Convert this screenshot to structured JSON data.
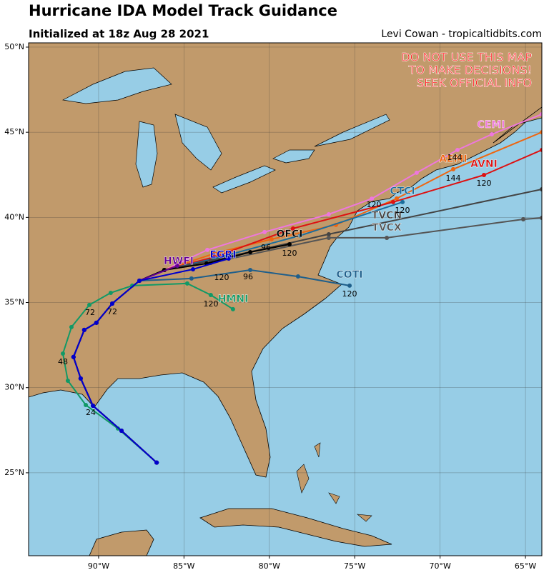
{
  "title": "Hurricane IDA Model Track Guidance",
  "subtitle": "Initialized at 18z Aug 28 2021",
  "credit": "Levi Cowan - tropicaltidbits.com",
  "warning": [
    "DO NOT USE THIS MAP",
    "TO MAKE DECISIONS!",
    "SEEK OFFICIAL INFO"
  ],
  "map": {
    "xlim": [
      -94.1,
      -64.04
    ],
    "ylim": [
      20.13,
      50.25
    ],
    "xticks": [
      {
        "value": -90,
        "label": "90°W"
      },
      {
        "value": -85,
        "label": "85°W"
      },
      {
        "value": -80,
        "label": "80°W"
      },
      {
        "value": -75,
        "label": "75°W"
      },
      {
        "value": -70,
        "label": "70°W"
      },
      {
        "value": -65,
        "label": "65°W"
      }
    ],
    "yticks": [
      {
        "value": 25,
        "label": "25°N"
      },
      {
        "value": 30,
        "label": "30°N"
      },
      {
        "value": 35,
        "label": "35°N"
      },
      {
        "value": 40,
        "label": "40°N"
      },
      {
        "value": 45,
        "label": "45°N"
      },
      {
        "value": 50,
        "label": "50°N"
      }
    ],
    "grid": true
  },
  "tracks": [
    {
      "name": "CEMI",
      "color": "#ee77dd",
      "lon": [
        -86.6,
        -88.66,
        -90.33,
        -91.05,
        -91.47,
        -90.84,
        -90.13,
        -89.2,
        -87.61,
        -86.15,
        -83.63,
        -80.28,
        -76.52,
        -74.0,
        -71.37,
        -68.98,
        -66.97,
        -64.04
      ],
      "lat": [
        25.6,
        27.47,
        28.94,
        30.54,
        31.8,
        33.39,
        33.81,
        34.94,
        36.28,
        36.91,
        38.09,
        39.14,
        40.18,
        41.1,
        42.62,
        43.96,
        44.88,
        46.06
      ]
    },
    {
      "name": "AEMI",
      "color": "#ee6611",
      "lon": [
        -86.6,
        -88.66,
        -90.33,
        -91.05,
        -91.47,
        -90.84,
        -90.13,
        -89.2,
        -87.61,
        -86.15,
        -83.22,
        -79.87,
        -76.1,
        -72.54,
        -69.23,
        -64.04
      ],
      "lat": [
        25.6,
        27.47,
        28.94,
        30.54,
        31.8,
        33.39,
        33.81,
        34.94,
        36.28,
        36.91,
        37.88,
        38.72,
        39.56,
        41.11,
        42.83,
        45.0
      ]
    },
    {
      "name": "AVNI",
      "color": "#dd1111",
      "lon": [
        -86.6,
        -88.66,
        -90.33,
        -91.05,
        -91.47,
        -90.84,
        -90.13,
        -89.2,
        -87.61,
        -86.15,
        -83.22,
        -78.61,
        -72.75,
        -67.43,
        -64.04
      ],
      "lat": [
        25.6,
        27.47,
        28.94,
        30.54,
        31.8,
        33.39,
        33.81,
        34.94,
        36.28,
        36.91,
        37.67,
        39.35,
        40.9,
        42.49,
        43.96
      ]
    },
    {
      "name": "CTCI",
      "color": "#1a6e9e",
      "lon": [
        -86.6,
        -88.66,
        -90.33,
        -91.05,
        -91.47,
        -90.84,
        -90.13,
        -89.2,
        -87.61,
        -86.15,
        -83.22,
        -78.19,
        -72.2
      ],
      "lat": [
        25.6,
        27.47,
        28.94,
        30.54,
        31.8,
        33.39,
        33.81,
        34.94,
        36.28,
        36.91,
        37.58,
        38.93,
        40.9
      ]
    },
    {
      "name": "TVCN",
      "color": "#444444",
      "lon": [
        -86.6,
        -88.66,
        -90.33,
        -91.05,
        -91.47,
        -90.84,
        -90.13,
        -89.2,
        -87.61,
        -86.15,
        -83.43,
        -76.52,
        -64.04
      ],
      "lat": [
        25.6,
        27.47,
        28.94,
        30.54,
        31.8,
        33.39,
        33.81,
        34.94,
        36.28,
        36.91,
        37.46,
        39.01,
        41.65
      ]
    },
    {
      "name": "TVCX",
      "color": "#555555",
      "lon": [
        -86.6,
        -88.66,
        -90.33,
        -91.05,
        -91.47,
        -90.84,
        -90.13,
        -89.2,
        -87.61,
        -86.15,
        -83.43,
        -76.52,
        -73.12,
        -65.13,
        -64.04
      ],
      "lat": [
        25.6,
        27.47,
        28.94,
        30.54,
        31.8,
        33.39,
        33.81,
        34.94,
        36.28,
        36.91,
        37.33,
        38.8,
        38.8,
        39.89,
        39.97
      ]
    },
    {
      "name": "OFCI",
      "color": "#000000",
      "lon": [
        -86.6,
        -88.66,
        -90.33,
        -91.05,
        -91.47,
        -90.84,
        -90.13,
        -89.2,
        -87.61,
        -86.15,
        -83.68,
        -81.12,
        -78.82
      ],
      "lat": [
        25.6,
        27.47,
        28.94,
        30.54,
        31.8,
        33.39,
        33.81,
        34.94,
        36.28,
        36.91,
        37.29,
        37.96,
        38.42
      ]
    },
    {
      "name": "COTI",
      "color": "#1f5f8b",
      "lon": [
        -86.6,
        -88.66,
        -90.33,
        -91.05,
        -91.47,
        -90.84,
        -90.13,
        -89.2,
        -87.61,
        -84.56,
        -81.12,
        -78.32,
        -75.3
      ],
      "lat": [
        25.6,
        27.47,
        28.94,
        30.54,
        31.8,
        33.39,
        33.81,
        34.94,
        36.28,
        36.41,
        36.91,
        36.53,
        35.99
      ]
    },
    {
      "name": "HMNI",
      "color": "#119966",
      "lon": [
        -86.6,
        -88.87,
        -90.75,
        -91.8,
        -92.09,
        -91.59,
        -90.54,
        -89.29,
        -88.03,
        -84.81,
        -83.43,
        -82.13
      ],
      "lat": [
        25.6,
        27.6,
        28.98,
        30.41,
        32.0,
        33.56,
        34.86,
        35.57,
        35.99,
        36.12,
        35.44,
        34.61
      ]
    },
    {
      "name": "HWFI",
      "color": "#660099",
      "lon": [
        -86.6,
        -88.66,
        -90.33,
        -91.05,
        -91.47,
        -90.84,
        -90.13,
        -89.2,
        -87.61,
        -85.39
      ],
      "lat": [
        25.6,
        27.47,
        28.94,
        30.54,
        31.8,
        33.39,
        33.81,
        34.94,
        36.28,
        37.16
      ]
    },
    {
      "name": "EGRI",
      "color": "#0000cc",
      "lon": [
        -86.6,
        -88.66,
        -90.33,
        -91.05,
        -91.47,
        -90.84,
        -90.13,
        -89.2,
        -87.61,
        -84.47,
        -82.38
      ],
      "lat": [
        25.6,
        27.47,
        28.94,
        30.54,
        31.8,
        33.39,
        33.81,
        34.94,
        36.28,
        36.95,
        37.58
      ]
    }
  ],
  "hour_labels": [
    "144",
    "144",
    "120",
    "120",
    "120",
    "120",
    "120",
    "120",
    "96",
    "96",
    "72",
    "72",
    "48",
    "120",
    "24"
  ]
}
